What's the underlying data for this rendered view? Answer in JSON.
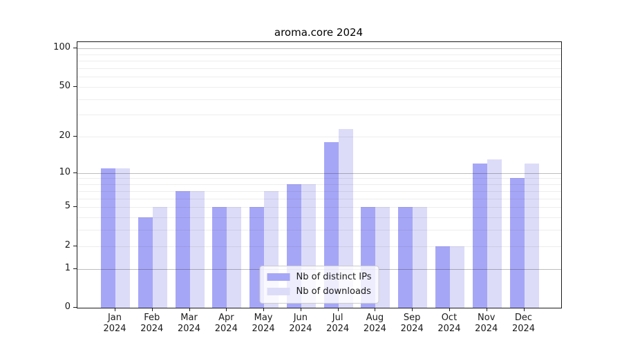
{
  "chart_data": {
    "type": "bar",
    "title": "aroma.core 2024",
    "xlabel": "",
    "ylabel": "",
    "year": "2024",
    "categories": [
      "Jan",
      "Feb",
      "Mar",
      "Apr",
      "May",
      "Jun",
      "Jul",
      "Aug",
      "Sep",
      "Oct",
      "Nov",
      "Dec"
    ],
    "series": [
      {
        "key": "distinct-ips",
        "name": "Nb of distinct IPs",
        "color": "#a6a6f7",
        "values": [
          11,
          4,
          7,
          5,
          5,
          8,
          18,
          5,
          5,
          2,
          12,
          9
        ]
      },
      {
        "key": "downloads",
        "name": "Nb of downloads",
        "color": "#dcdcf9",
        "values": [
          11,
          5,
          7,
          5,
          7,
          8,
          23,
          5,
          5,
          2,
          13,
          12
        ]
      }
    ],
    "yscale": "log1p",
    "ylim": [
      0,
      112
    ],
    "yticks": [
      0,
      1,
      2,
      5,
      10,
      20,
      50,
      100
    ],
    "grid": {
      "on": true,
      "minor_values": [
        2,
        3,
        4,
        5,
        6,
        7,
        8,
        9,
        20,
        30,
        40,
        50,
        60,
        70,
        80,
        90
      ],
      "major_values": [
        1,
        10,
        100
      ]
    },
    "legend_position": "lower center"
  }
}
